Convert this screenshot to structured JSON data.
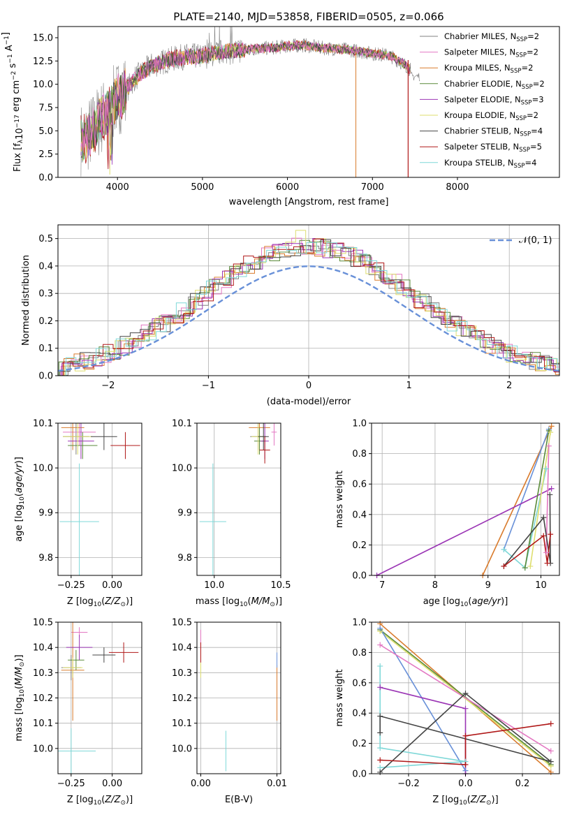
{
  "colors": {
    "chabrier_miles": "#808080",
    "salpeter_miles": "#e377c2",
    "kroupa_miles": "#d97b2c",
    "chabrier_elodie": "#5a8a3a",
    "salpeter_elodie": "#9b35b5",
    "kroupa_elodie": "#dede6e",
    "chabrier_stelib": "#444444",
    "salpeter_stelib": "#b01818",
    "kroupa_stelib": "#7fd8d8",
    "blue": "#6890d8"
  },
  "chart_data": [
    {
      "type": "line",
      "title": "PLATE=2140, MJD=53858, FIBERID=0505, z=0.066",
      "xlabel": "wavelength [Angstrom, rest frame]",
      "ylabel": "Flux [f_λ10^-17 erg cm^-2 s^-1 A^-1]",
      "xlim": [
        3300,
        9200
      ],
      "ylim": [
        0,
        16.2
      ],
      "xticks": [
        4000,
        5000,
        6000,
        7000,
        8000
      ],
      "yticks": [
        0.0,
        2.5,
        5.0,
        7.5,
        10.0,
        12.5,
        15.0
      ],
      "legend_position": "top-right",
      "spectrum_envelope": {
        "x": [
          3600,
          3700,
          3800,
          3900,
          4000,
          4100,
          4200,
          4400,
          4600,
          4800,
          5000,
          5200,
          5400,
          5600,
          5800,
          6000,
          6200,
          6400,
          6600,
          6800,
          7000,
          7200,
          7400,
          7450
        ],
        "y": [
          4.0,
          5.0,
          6.3,
          7.2,
          8.5,
          9.3,
          10.6,
          12.0,
          12.6,
          13.0,
          13.0,
          13.4,
          13.6,
          13.8,
          13.9,
          14.1,
          14.2,
          13.9,
          13.8,
          13.6,
          13.3,
          13.1,
          12.0,
          11.5
        ]
      },
      "series": [
        {
          "name": "Chabrier MILES, N_SSP=2",
          "label": "Chabrier MILES, N",
          "sub": "SSP",
          "n": "=2",
          "color_key": "chabrier_miles"
        },
        {
          "name": "Salpeter MILES, N_SSP=2",
          "label": "Salpeter MILES, N",
          "sub": "SSP",
          "n": "=2",
          "color_key": "salpeter_miles"
        },
        {
          "name": "Kroupa MILES, N_SSP=2",
          "label": "Kroupa MILES, N",
          "sub": "SSP",
          "n": "=2",
          "color_key": "kroupa_miles"
        },
        {
          "name": "Chabrier ELODIE, N_SSP=2",
          "label": "Chabrier ELODIE, N",
          "sub": "SSP",
          "n": "=2",
          "color_key": "chabrier_elodie"
        },
        {
          "name": "Salpeter ELODIE, N_SSP=3",
          "label": "Salpeter ELODIE, N",
          "sub": "SSP",
          "n": "=3",
          "color_key": "salpeter_elodie"
        },
        {
          "name": "Kroupa ELODIE, N_SSP=2",
          "label": "Kroupa ELODIE, N",
          "sub": "SSP",
          "n": "=2",
          "color_key": "kroupa_elodie"
        },
        {
          "name": "Chabrier STELIB, N_SSP=4",
          "label": "Chabrier STELIB, N",
          "sub": "SSP",
          "n": "=4",
          "color_key": "chabrier_stelib"
        },
        {
          "name": "Salpeter STELIB, N_SSP=5",
          "label": "Salpeter STELIB, N",
          "sub": "SSP",
          "n": "=5",
          "color_key": "salpeter_stelib"
        },
        {
          "name": "Kroupa STELIB, N_SSP=4",
          "label": "Kroupa STELIB, N",
          "sub": "SSP",
          "n": "=4",
          "color_key": "kroupa_stelib"
        }
      ]
    },
    {
      "type": "histogram",
      "xlabel": "(data-model)/error",
      "ylabel": "Normed distribution",
      "xlim": [
        -2.5,
        2.5
      ],
      "ylim": [
        0,
        0.55
      ],
      "xticks": [
        -2,
        -1,
        0,
        1,
        2
      ],
      "yticks": [
        0.0,
        0.1,
        0.2,
        0.3,
        0.4,
        0.5
      ],
      "grid": true,
      "legend": "𝒩(0, 1)",
      "legend_position": "top-right",
      "bin_width": 0.1
    },
    {
      "type": "errorbar",
      "xlabel": "Z [log10(Z/Z☉)]",
      "ylabel": "age [log10(age/yr)]",
      "xlim": [
        -0.33,
        0.18
      ],
      "ylim": [
        9.76,
        10.1
      ],
      "xticks": [
        -0.25,
        0.0
      ],
      "yticks": [
        9.8,
        9.9,
        10.0,
        10.1
      ]
    },
    {
      "type": "errorbar",
      "xlabel": "mass [log10(M/M☉)]",
      "xlim": [
        9.87,
        10.5
      ],
      "ylim": [
        9.76,
        10.1
      ],
      "xticks": [
        10.0,
        10.5
      ],
      "yticks": [
        9.8,
        9.9,
        10.0,
        10.1
      ]
    },
    {
      "type": "line",
      "xlabel": "age [log10(age/yr)]",
      "ylabel": "mass weight",
      "xlim": [
        6.8,
        10.35
      ],
      "ylim": [
        0,
        1.0
      ],
      "xticks": [
        7,
        8,
        9,
        10
      ],
      "yticks": [
        0.0,
        0.2,
        0.4,
        0.6,
        0.8,
        1.0
      ],
      "grid": true
    },
    {
      "type": "errorbar",
      "xlabel": "Z [log10(Z/Z☉)]",
      "ylabel": "mass [log10(M/M☉)]",
      "xlim": [
        -0.33,
        0.18
      ],
      "ylim": [
        9.9,
        10.5
      ],
      "xticks": [
        -0.25,
        0.0
      ],
      "yticks": [
        10.0,
        10.1,
        10.2,
        10.3,
        10.4,
        10.5
      ]
    },
    {
      "type": "errorbar",
      "xlabel": "E(B-V)",
      "xlim": [
        -0.0005,
        0.0105
      ],
      "ylim": [
        9.9,
        10.5
      ],
      "xticks": [
        0.0,
        0.01
      ],
      "yticks": [
        10.0,
        10.1,
        10.2,
        10.3,
        10.4,
        10.5
      ]
    },
    {
      "type": "line",
      "xlabel": "Z [log10(Z/Z☉)]",
      "ylabel": "mass weight",
      "xlim": [
        -0.33,
        0.33
      ],
      "ylim": [
        0,
        1.0
      ],
      "xticks": [
        -0.2,
        0.0,
        0.2
      ],
      "yticks": [
        0.0,
        0.2,
        0.4,
        0.6,
        0.8,
        1.0
      ],
      "grid": true
    }
  ],
  "age_z": [
    {
      "k": "chabrier_miles",
      "x": -0.22,
      "y": 10.07,
      "xe": 0.08,
      "ye": 0.04
    },
    {
      "k": "salpeter_miles",
      "x": -0.2,
      "y": 10.08,
      "xe": 0.1,
      "ye": 0.03
    },
    {
      "k": "kroupa_miles",
      "x": -0.24,
      "y": 10.09,
      "xe": 0.07,
      "ye": 0.05
    },
    {
      "k": "chabrier_elodie",
      "x": -0.18,
      "y": 10.05,
      "xe": 0.09,
      "ye": 0.03
    },
    {
      "k": "salpeter_elodie",
      "x": -0.19,
      "y": 10.06,
      "xe": 0.08,
      "ye": 0.04
    },
    {
      "k": "kroupa_elodie",
      "x": -0.21,
      "y": 10.07,
      "xe": 0.09,
      "ye": 0.04
    },
    {
      "k": "chabrier_stelib",
      "x": -0.05,
      "y": 10.07,
      "xe": 0.08,
      "ye": 0.03
    },
    {
      "k": "salpeter_stelib",
      "x": 0.08,
      "y": 10.05,
      "xe": 0.09,
      "ye": 0.03
    },
    {
      "k": "kroupa_stelib",
      "x": -0.2,
      "y": 9.88,
      "xe": 0.12,
      "ye": 0.13
    }
  ],
  "age_mass": [
    {
      "k": "chabrier_miles",
      "x": 10.33,
      "y": 10.07,
      "xe": 0.06,
      "ye": 0.03
    },
    {
      "k": "salpeter_miles",
      "x": 10.45,
      "y": 10.08,
      "xe": 0.02,
      "ye": 0.03
    },
    {
      "k": "kroupa_miles",
      "x": 10.34,
      "y": 10.09,
      "xe": 0.08,
      "ye": 0.05
    },
    {
      "k": "chabrier_elodie",
      "x": 10.34,
      "y": 10.06,
      "xe": 0.04,
      "ye": 0.03
    },
    {
      "k": "salpeter_elodie",
      "x": 10.38,
      "y": 10.06,
      "xe": 0.03,
      "ye": 0.04
    },
    {
      "k": "kroupa_elodie",
      "x": 10.33,
      "y": 10.07,
      "xe": 0.05,
      "ye": 0.04
    },
    {
      "k": "chabrier_stelib",
      "x": 10.37,
      "y": 10.07,
      "xe": 0.04,
      "ye": 0.03
    },
    {
      "k": "salpeter_stelib",
      "x": 10.38,
      "y": 10.04,
      "xe": 0.04,
      "ye": 0.03
    },
    {
      "k": "kroupa_stelib",
      "x": 9.99,
      "y": 9.88,
      "xe": 0.1,
      "ye": 0.13
    }
  ],
  "weight_age": [
    {
      "k": "kroupa_miles",
      "pts": [
        [
          8.9,
          0.0
        ],
        [
          10.2,
          0.98
        ]
      ]
    },
    {
      "k": "blue",
      "pts": [
        [
          9.3,
          0.17
        ],
        [
          10.15,
          0.96
        ]
      ]
    },
    {
      "k": "kroupa_stelib",
      "pts": [
        [
          9.3,
          0.17
        ],
        [
          9.7,
          0.05
        ],
        [
          10.1,
          0.7
        ]
      ]
    },
    {
      "k": "salpeter_elodie",
      "pts": [
        [
          6.9,
          0.0
        ],
        [
          10.2,
          0.57
        ]
      ]
    },
    {
      "k": "chabrier_elodie",
      "pts": [
        [
          9.7,
          0.05
        ],
        [
          10.15,
          0.95
        ]
      ]
    },
    {
      "k": "kroupa_elodie",
      "pts": [
        [
          9.8,
          0.06
        ],
        [
          10.18,
          0.94
        ]
      ]
    },
    {
      "k": "salpeter_miles",
      "pts": [
        [
          10.1,
          0.15
        ],
        [
          10.15,
          0.85
        ]
      ]
    },
    {
      "k": "chabrier_stelib",
      "pts": [
        [
          9.3,
          0.06
        ],
        [
          10.05,
          0.38
        ],
        [
          10.18,
          0.08
        ],
        [
          10.17,
          0.53
        ]
      ]
    },
    {
      "k": "salpeter_stelib",
      "pts": [
        [
          9.3,
          0.06
        ],
        [
          10.05,
          0.26
        ],
        [
          10.12,
          0.08
        ],
        [
          10.18,
          0.27
        ]
      ]
    }
  ],
  "mass_z": [
    {
      "k": "chabrier_miles",
      "x": -0.25,
      "y": 10.32,
      "xe": 0.06,
      "ye": 0.05
    },
    {
      "k": "salpeter_miles",
      "x": -0.2,
      "y": 10.46,
      "xe": 0.05,
      "ye": 0.02
    },
    {
      "k": "kroupa_miles",
      "x": -0.24,
      "y": 10.31,
      "xe": 0.07,
      "ye": 0.2
    },
    {
      "k": "chabrier_elodie",
      "x": -0.22,
      "y": 10.35,
      "xe": 0.05,
      "ye": 0.04
    },
    {
      "k": "salpeter_elodie",
      "x": -0.2,
      "y": 10.4,
      "xe": 0.08,
      "ye": 0.05
    },
    {
      "k": "kroupa_elodie",
      "x": -0.24,
      "y": 10.32,
      "xe": 0.06,
      "ye": 0.04
    },
    {
      "k": "chabrier_stelib",
      "x": -0.05,
      "y": 10.37,
      "xe": 0.07,
      "ye": 0.03
    },
    {
      "k": "salpeter_stelib",
      "x": 0.07,
      "y": 10.38,
      "xe": 0.09,
      "ye": 0.04
    },
    {
      "k": "kroupa_stelib",
      "x": -0.25,
      "y": 9.99,
      "xe": 0.15,
      "ye": 0.09
    }
  ],
  "mass_ebv": [
    {
      "k": "salpeter_miles",
      "x": 0.0,
      "y": 10.43,
      "xe": 0.0,
      "ye": 0.04
    },
    {
      "k": "salpeter_stelib",
      "x": 0.0,
      "y": 10.38,
      "xe": 0.0,
      "ye": 0.04
    },
    {
      "k": "kroupa_elodie",
      "x": 0.0,
      "y": 10.31,
      "xe": 0.0,
      "ye": 0.03
    },
    {
      "k": "kroupa_stelib",
      "x": 0.0033,
      "y": 9.99,
      "xe": 0.0,
      "ye": 0.08
    },
    {
      "k": "kroupa_miles",
      "x": 0.01,
      "y": 10.22,
      "xe": 0.0,
      "ye": 0.11
    },
    {
      "k": "blue",
      "x": 0.01,
      "y": 10.35,
      "xe": 0.0,
      "ye": 0.03
    }
  ],
  "weight_z": [
    {
      "k": "kroupa_miles",
      "pts": [
        [
          -0.3,
          0.99
        ],
        [
          0.3,
          0.01
        ]
      ]
    },
    {
      "k": "chabrier_elodie",
      "pts": [
        [
          -0.3,
          0.95
        ],
        [
          0.3,
          0.06
        ]
      ]
    },
    {
      "k": "kroupa_elodie",
      "pts": [
        [
          -0.3,
          0.94
        ],
        [
          0.3,
          0.05
        ]
      ]
    },
    {
      "k": "blue",
      "pts": [
        [
          -0.3,
          0.96
        ],
        [
          0.0,
          0.02
        ]
      ]
    },
    {
      "k": "salpeter_miles",
      "pts": [
        [
          -0.3,
          0.85
        ],
        [
          0.3,
          0.15
        ]
      ]
    },
    {
      "k": "salpeter_elodie",
      "pts": [
        [
          -0.3,
          0.57
        ],
        [
          0.0,
          0.43
        ],
        [
          0.0,
          0.0
        ]
      ]
    },
    {
      "k": "kroupa_stelib",
      "pts": [
        [
          -0.3,
          0.04
        ],
        [
          0.0,
          0.08
        ],
        [
          -0.3,
          0.17
        ],
        [
          -0.3,
          0.71
        ]
      ]
    },
    {
      "k": "chabrier_stelib",
      "pts": [
        [
          -0.3,
          0.01
        ],
        [
          0.0,
          0.53
        ],
        [
          0.3,
          0.08
        ],
        [
          -0.3,
          0.38
        ],
        [
          -0.3,
          0.27
        ]
      ]
    },
    {
      "k": "salpeter_stelib",
      "pts": [
        [
          -0.3,
          0.09
        ],
        [
          0.0,
          0.06
        ],
        [
          0.0,
          0.25
        ],
        [
          0.3,
          0.33
        ]
      ]
    }
  ]
}
